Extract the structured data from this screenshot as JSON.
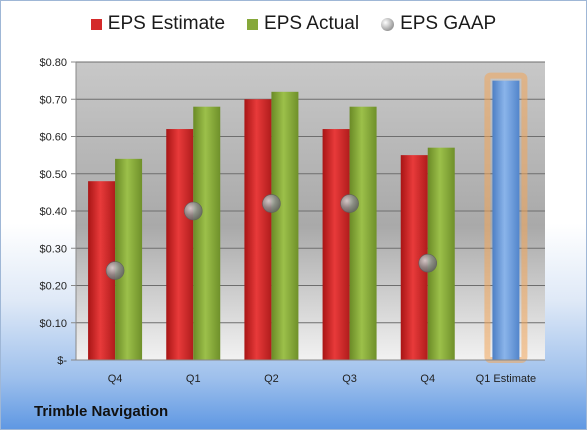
{
  "legend": {
    "estimate": "EPS Estimate",
    "actual": "EPS Actual",
    "gaap": "EPS GAAP"
  },
  "company": "Trimble Navigation",
  "colors": {
    "estimate": "#d42a2a",
    "actual": "#86a83a",
    "gaap": "#9a9a9a",
    "forecast": "#6f9fdc",
    "forecast_glow": "#f2a65a"
  },
  "chart_data": {
    "type": "bar",
    "categories": [
      "Q4",
      "Q1",
      "Q2",
      "Q3",
      "Q4",
      "Q1 Estimate"
    ],
    "series": [
      {
        "name": "EPS Estimate",
        "values": [
          0.48,
          0.62,
          0.7,
          0.62,
          0.55,
          null
        ]
      },
      {
        "name": "EPS Actual",
        "values": [
          0.54,
          0.68,
          0.72,
          0.68,
          0.57,
          null
        ]
      },
      {
        "name": "EPS GAAP",
        "values": [
          0.24,
          0.4,
          0.42,
          0.42,
          0.26,
          null
        ]
      }
    ],
    "forecast": {
      "category": "Q1 Estimate",
      "value": 0.75
    },
    "yticks": [
      "$-",
      "$0.10",
      "$0.20",
      "$0.30",
      "$0.40",
      "$0.50",
      "$0.60",
      "$0.70",
      "$0.80"
    ],
    "ylim": [
      0,
      0.8
    ],
    "grid": true,
    "legend_position": "top"
  }
}
